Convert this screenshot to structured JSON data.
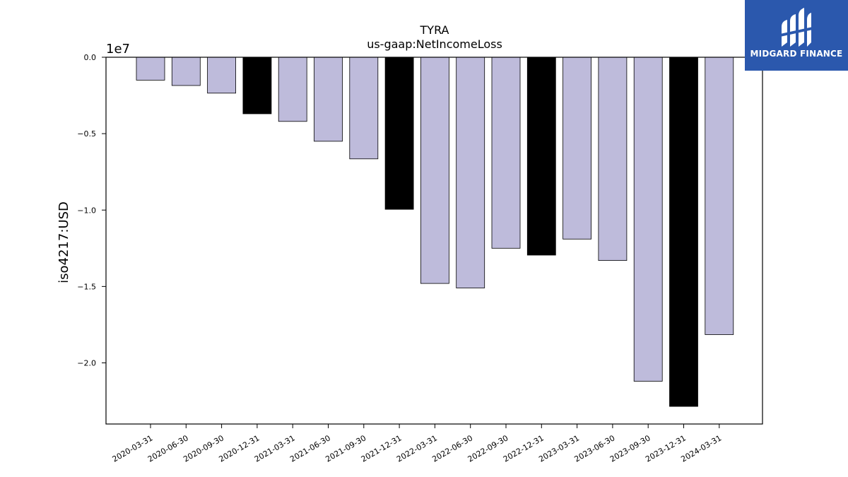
{
  "chart_data": {
    "type": "bar",
    "title": "TYRA",
    "subtitle": "us-gaap:NetIncomeLoss",
    "xlabel": "",
    "ylabel": "iso4217:USD",
    "y_scale_label": "1e7",
    "ylim": [
      -24000000,
      0
    ],
    "yticks": [
      0,
      -5000000,
      -10000000,
      -15000000,
      -20000000
    ],
    "ytick_labels": [
      "0.0",
      "−0.5",
      "−1.0",
      "−1.5",
      "−2.0"
    ],
    "grid": false,
    "categories": [
      "2020-03-31",
      "2020-06-30",
      "2020-09-30",
      "2020-12-31",
      "2021-03-31",
      "2021-06-30",
      "2021-09-30",
      "2021-12-31",
      "2022-03-31",
      "2022-06-30",
      "2022-09-30",
      "2022-12-31",
      "2023-03-31",
      "2023-06-30",
      "2023-09-30",
      "2023-12-31",
      "2024-03-31"
    ],
    "values": [
      -1500000,
      -1850000,
      -2350000,
      -3700000,
      -4200000,
      -5500000,
      -6650000,
      -9950000,
      -14800000,
      -15100000,
      -12500000,
      -12950000,
      -11900000,
      -13300000,
      -21200000,
      -22850000,
      -18150000
    ],
    "highlight": [
      false,
      false,
      false,
      true,
      false,
      false,
      false,
      true,
      false,
      false,
      false,
      true,
      false,
      false,
      false,
      true,
      false
    ],
    "colors": {
      "bar": "#bebbdb",
      "highlight": "#000000",
      "edge": "#000000"
    }
  },
  "logo": {
    "text": "MIDGARD FINANCE",
    "background": "#2b58ad"
  }
}
